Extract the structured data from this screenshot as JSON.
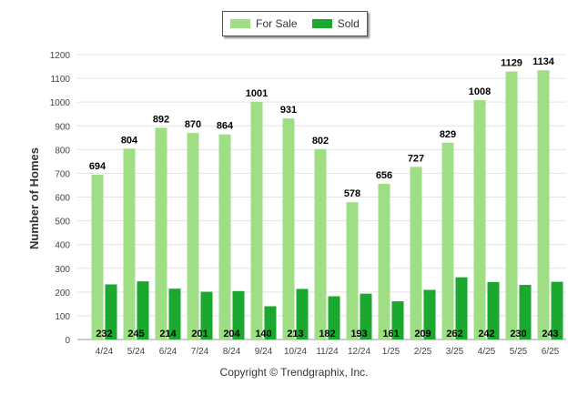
{
  "chart_data": {
    "type": "bar",
    "ylabel": "Number of Homes",
    "ylim": [
      0,
      1200
    ],
    "yticks": [
      0,
      100,
      200,
      300,
      400,
      500,
      600,
      700,
      800,
      900,
      1000,
      1100,
      1200
    ],
    "grid": true,
    "legend_position": "top-center",
    "categories": [
      "4/24",
      "5/24",
      "6/24",
      "7/24",
      "8/24",
      "9/24",
      "10/24",
      "11/24",
      "12/24",
      "1/25",
      "2/25",
      "3/25",
      "4/25",
      "5/25",
      "6/25"
    ],
    "series": [
      {
        "name": "For Sale",
        "color": "#9fde85",
        "values": [
          694,
          804,
          892,
          870,
          864,
          1001,
          931,
          802,
          578,
          656,
          727,
          829,
          1008,
          1129,
          1134
        ]
      },
      {
        "name": "Sold",
        "color": "#1aa82e",
        "values": [
          232,
          245,
          214,
          201,
          204,
          140,
          213,
          182,
          193,
          161,
          209,
          262,
          242,
          230,
          243
        ]
      }
    ]
  },
  "footer": "Copyright © Trendgraphix, Inc."
}
